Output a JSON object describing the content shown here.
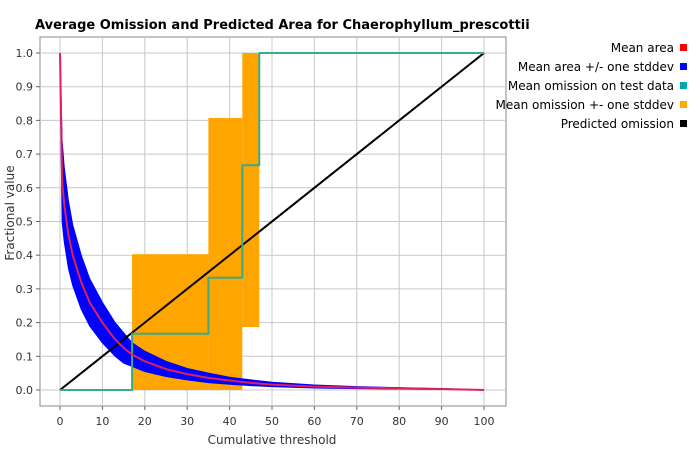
{
  "chart_data": {
    "type": "line",
    "title": "Average Omission and Predicted Area for Chaerophyllum_prescottii",
    "xlabel": "Cumulative threshold",
    "ylabel": "Fractional value",
    "xlim": [
      0,
      100
    ],
    "ylim": [
      0,
      1
    ],
    "xticks": [
      "0",
      "10",
      "20",
      "30",
      "40",
      "50",
      "60",
      "70",
      "80",
      "90",
      "100"
    ],
    "yticks": [
      "0.0",
      "0.1",
      "0.2",
      "0.3",
      "0.4",
      "0.5",
      "0.6",
      "0.7",
      "0.8",
      "0.9",
      "1.0"
    ],
    "grid": true,
    "legend_position": "right",
    "legend": [
      {
        "label": "Mean area",
        "color": "#ff0000"
      },
      {
        "label": "Mean area +/- one stddev",
        "color": "#0000ff"
      },
      {
        "label": "Mean omission on test data",
        "color": "#00aaaa"
      },
      {
        "label": "Mean omission +- one stddev",
        "color": "#ffaa00"
      },
      {
        "label": "Predicted omission",
        "color": "#000000"
      }
    ],
    "series": [
      {
        "name": "Mean area",
        "color": "#e0205a",
        "x": [
          0,
          0.5,
          1,
          2,
          3,
          5,
          7,
          10,
          13,
          15,
          17,
          20,
          25,
          30,
          35,
          40,
          45,
          50,
          60,
          70,
          80,
          90,
          100
        ],
        "y": [
          1.0,
          0.62,
          0.55,
          0.46,
          0.4,
          0.32,
          0.26,
          0.2,
          0.15,
          0.125,
          0.105,
          0.085,
          0.062,
          0.047,
          0.036,
          0.028,
          0.021,
          0.016,
          0.01,
          0.007,
          0.005,
          0.003,
          0.0
        ]
      },
      {
        "name": "Mean area +/- one stddev",
        "color": "#0000ff",
        "x": [
          0,
          0.5,
          1,
          2,
          3,
          5,
          7,
          10,
          13,
          15,
          17,
          20,
          25,
          30,
          35,
          40,
          45,
          50,
          60,
          70,
          80,
          90,
          100
        ],
        "upper": [
          1.0,
          0.74,
          0.66,
          0.56,
          0.49,
          0.4,
          0.33,
          0.26,
          0.2,
          0.17,
          0.14,
          0.115,
          0.085,
          0.064,
          0.05,
          0.038,
          0.03,
          0.023,
          0.015,
          0.01,
          0.007,
          0.004,
          0.0
        ],
        "lower": [
          1.0,
          0.5,
          0.44,
          0.36,
          0.31,
          0.24,
          0.19,
          0.14,
          0.1,
          0.08,
          0.07,
          0.055,
          0.04,
          0.03,
          0.022,
          0.017,
          0.013,
          0.01,
          0.006,
          0.004,
          0.003,
          0.002,
          0.0
        ]
      },
      {
        "name": "Mean omission on test data",
        "color": "#3aaa8a",
        "x": [
          0,
          17,
          17,
          35,
          35,
          43,
          43,
          47,
          47,
          100
        ],
        "y": [
          0,
          0,
          0.167,
          0.167,
          0.333,
          0.333,
          0.667,
          0.667,
          1.0,
          1.0
        ]
      },
      {
        "name": "Mean omission +- one stddev",
        "color": "#ffa500",
        "bands": [
          {
            "x0": 17,
            "x1": 35,
            "lower": 0,
            "upper": 0.403
          },
          {
            "x0": 35,
            "x1": 43,
            "lower": 0,
            "upper": 0.807
          },
          {
            "x0": 43,
            "x1": 47,
            "lower": 0.187,
            "upper": 1.0
          }
        ]
      },
      {
        "name": "Predicted omission",
        "color": "#000000",
        "x": [
          0,
          100
        ],
        "y": [
          0,
          1
        ]
      }
    ]
  }
}
